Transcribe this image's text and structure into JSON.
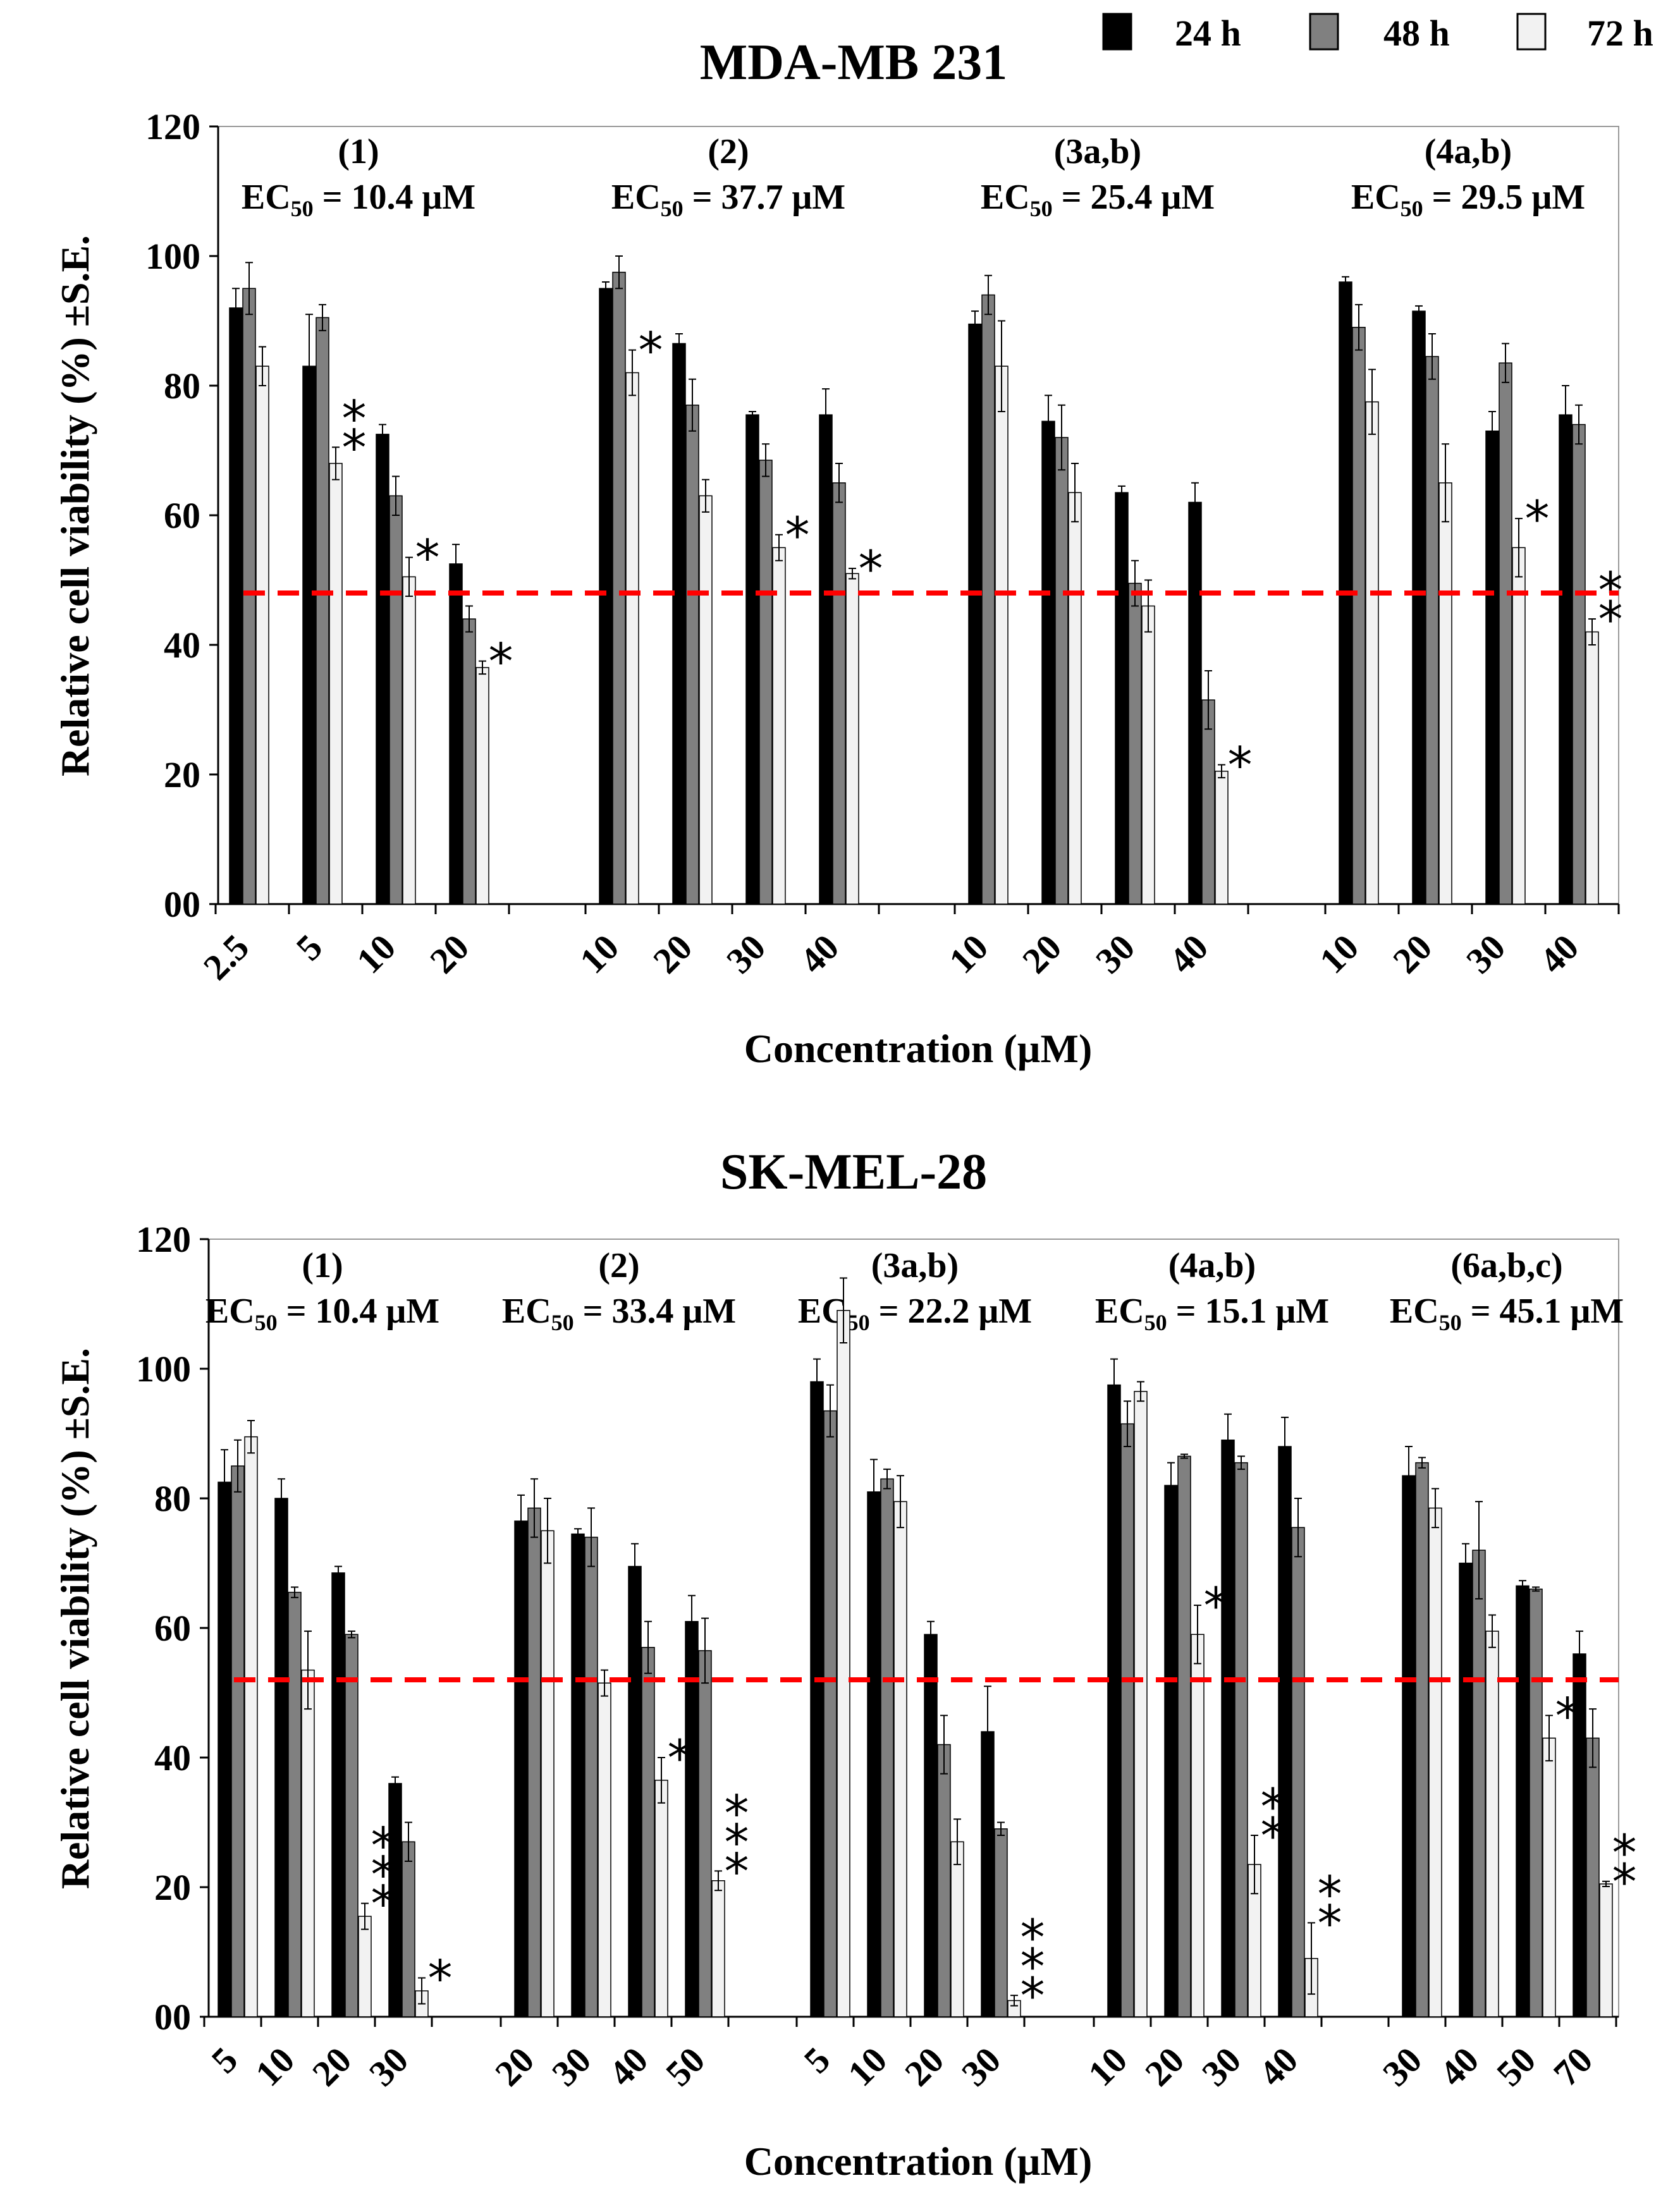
{
  "legend": [
    {
      "label": "24 h",
      "color": "#000000"
    },
    {
      "label": "48 h",
      "color": "#808080"
    },
    {
      "label": "72 h",
      "color": "#f2f2f2"
    }
  ],
  "chart_data": [
    {
      "type": "bar",
      "title": "MDA-MB 231",
      "xlabel": "Concentration (µM)",
      "ylabel": "Relative cell viability (%) ±S.E.",
      "ylim": [
        0,
        120
      ],
      "yticks": [
        "00",
        "20",
        "40",
        "60",
        "80",
        "100",
        "120"
      ],
      "reference_line": 48,
      "series_names": [
        "24 h",
        "48 h",
        "72 h"
      ],
      "groups": [
        {
          "compound": "(1)",
          "ec50_label": "EC",
          "ec50_sub": "50",
          "ec50_value": " = 10.4 μM",
          "categories": [
            "2.5",
            "5",
            "10",
            "20"
          ],
          "values": [
            [
              92,
              95,
              83
            ],
            [
              83,
              90.5,
              68
            ],
            [
              72.5,
              63,
              50.5
            ],
            [
              52.5,
              44,
              36.5
            ]
          ],
          "errors": [
            [
              3,
              4,
              3
            ],
            [
              8,
              2,
              2.5
            ],
            [
              1.5,
              3,
              3
            ],
            [
              3,
              2,
              1
            ]
          ],
          "stars": [
            "",
            "**",
            "*",
            "*"
          ]
        },
        {
          "compound": "(2)",
          "ec50_label": "EC",
          "ec50_sub": "50",
          "ec50_value": " = 37.7 μM",
          "categories": [
            "10",
            "20",
            "30",
            "40"
          ],
          "values": [
            [
              95,
              97.5,
              82
            ],
            [
              86.5,
              77,
              63
            ],
            [
              75.5,
              68.5,
              55
            ],
            [
              75.5,
              65,
              51
            ]
          ],
          "errors": [
            [
              1,
              2.5,
              3.5
            ],
            [
              1.5,
              4,
              2.5
            ],
            [
              0.5,
              2.5,
              2
            ],
            [
              4,
              3,
              0.8
            ]
          ],
          "stars": [
            "*",
            "",
            "*",
            "*"
          ]
        },
        {
          "compound": "(3a,b)",
          "ec50_label": "EC",
          "ec50_sub": "50",
          "ec50_value": " = 25.4 μM",
          "categories": [
            "10",
            "20",
            "30",
            "40"
          ],
          "values": [
            [
              89.5,
              94,
              83
            ],
            [
              74.5,
              72,
              63.5
            ],
            [
              63.5,
              49.5,
              46
            ],
            [
              62,
              31.5,
              20.5
            ]
          ],
          "errors": [
            [
              2,
              3,
              7
            ],
            [
              4,
              5,
              4.5
            ],
            [
              1,
              3.5,
              4
            ],
            [
              3,
              4.5,
              1
            ]
          ],
          "stars": [
            "",
            "",
            "",
            "*"
          ]
        },
        {
          "compound": "(4a,b)",
          "ec50_label": "EC",
          "ec50_sub": "50",
          "ec50_value": " = 29.5 μM",
          "categories": [
            "10",
            "20",
            "30",
            "40"
          ],
          "values": [
            [
              96,
              89,
              77.5
            ],
            [
              91.5,
              84.5,
              65
            ],
            [
              73,
              83.5,
              55
            ],
            [
              75.5,
              74,
              42
            ]
          ],
          "errors": [
            [
              0.8,
              3.5,
              5
            ],
            [
              0.8,
              3.5,
              6
            ],
            [
              3,
              3,
              4.5
            ],
            [
              4.5,
              3,
              2
            ]
          ],
          "stars": [
            "",
            "",
            "*",
            "**"
          ]
        }
      ]
    },
    {
      "type": "bar",
      "title": "SK-MEL-28",
      "xlabel": "Concentration (µM)",
      "ylabel": "Relative cell viability (%) ±S.E.",
      "ylim": [
        0,
        120
      ],
      "yticks": [
        "00",
        "20",
        "40",
        "60",
        "80",
        "100",
        "120"
      ],
      "reference_line": 52,
      "series_names": [
        "24 h",
        "48 h",
        "72 h"
      ],
      "groups": [
        {
          "compound": "(1)",
          "ec50_label": "EC",
          "ec50_sub": "50",
          "ec50_value": " = 10.4 μM",
          "categories": [
            "5",
            "10",
            "20",
            "30"
          ],
          "values": [
            [
              82.5,
              85,
              89.5
            ],
            [
              80,
              65.5,
              53.5
            ],
            [
              68.5,
              59,
              15.5
            ],
            [
              36,
              27,
              4
            ]
          ],
          "errors": [
            [
              5,
              4,
              2.5
            ],
            [
              3,
              0.8,
              6
            ],
            [
              1,
              0.5,
              2
            ],
            [
              1,
              3,
              2
            ]
          ],
          "stars": [
            "",
            "",
            "***",
            "*"
          ]
        },
        {
          "compound": "(2)",
          "ec50_label": "EC",
          "ec50_sub": "50",
          "ec50_value": " = 33.4 μM",
          "categories": [
            "20",
            "30",
            "40",
            "50"
          ],
          "values": [
            [
              76.5,
              78.5,
              75
            ],
            [
              74.5,
              74,
              51.5
            ],
            [
              69.5,
              57,
              36.5
            ],
            [
              61,
              56.5,
              21
            ]
          ],
          "errors": [
            [
              4,
              4.5,
              5
            ],
            [
              0.8,
              4.5,
              2
            ],
            [
              3.5,
              4,
              3.5
            ],
            [
              4,
              5,
              1.5
            ]
          ],
          "stars": [
            "",
            "",
            "*",
            "***"
          ]
        },
        {
          "compound": "(3a,b)",
          "ec50_label": "EC",
          "ec50_sub": "50",
          "ec50_value": " = 22.2 μM",
          "categories": [
            "5",
            "10",
            "20",
            "30"
          ],
          "values": [
            [
              98,
              93.5,
              109
            ],
            [
              81,
              83,
              79.5
            ],
            [
              59,
              42,
              27
            ],
            [
              44,
              29,
              2.5
            ]
          ],
          "errors": [
            [
              3.5,
              4,
              5
            ],
            [
              5,
              1.5,
              4
            ],
            [
              2,
              4.5,
              3.5
            ],
            [
              7,
              1,
              0.8
            ]
          ],
          "stars": [
            "",
            "",
            "",
            "***"
          ]
        },
        {
          "compound": "(4a,b)",
          "ec50_label": "EC",
          "ec50_sub": "50",
          "ec50_value": " = 15.1 μM",
          "categories": [
            "10",
            "20",
            "30",
            "40"
          ],
          "values": [
            [
              97.5,
              91.5,
              96.5
            ],
            [
              82,
              86.5,
              59
            ],
            [
              89,
              85.5,
              23.5
            ],
            [
              88,
              75.5,
              9
            ]
          ],
          "errors": [
            [
              4,
              3.5,
              1.5
            ],
            [
              3.5,
              0.3,
              4.5
            ],
            [
              4,
              1,
              4.5
            ],
            [
              4.5,
              4.5,
              5.5
            ]
          ],
          "stars": [
            "",
            "*",
            "**",
            "**"
          ]
        },
        {
          "compound": "(6a,b,c)",
          "ec50_label": "EC",
          "ec50_sub": "50",
          "ec50_value": " = 45.1 μM",
          "categories": [
            "30",
            "40",
            "50",
            "70"
          ],
          "values": [
            [
              83.5,
              85.5,
              78.5
            ],
            [
              70,
              72,
              59.5
            ],
            [
              66.5,
              66,
              43
            ],
            [
              56,
              43,
              20.5
            ]
          ],
          "errors": [
            [
              4.5,
              0.8,
              3
            ],
            [
              3,
              7.5,
              2.5
            ],
            [
              0.8,
              0.3,
              3.5
            ],
            [
              3.5,
              4.5,
              0.4
            ]
          ],
          "stars": [
            "",
            "",
            "*",
            "**"
          ]
        }
      ]
    }
  ]
}
